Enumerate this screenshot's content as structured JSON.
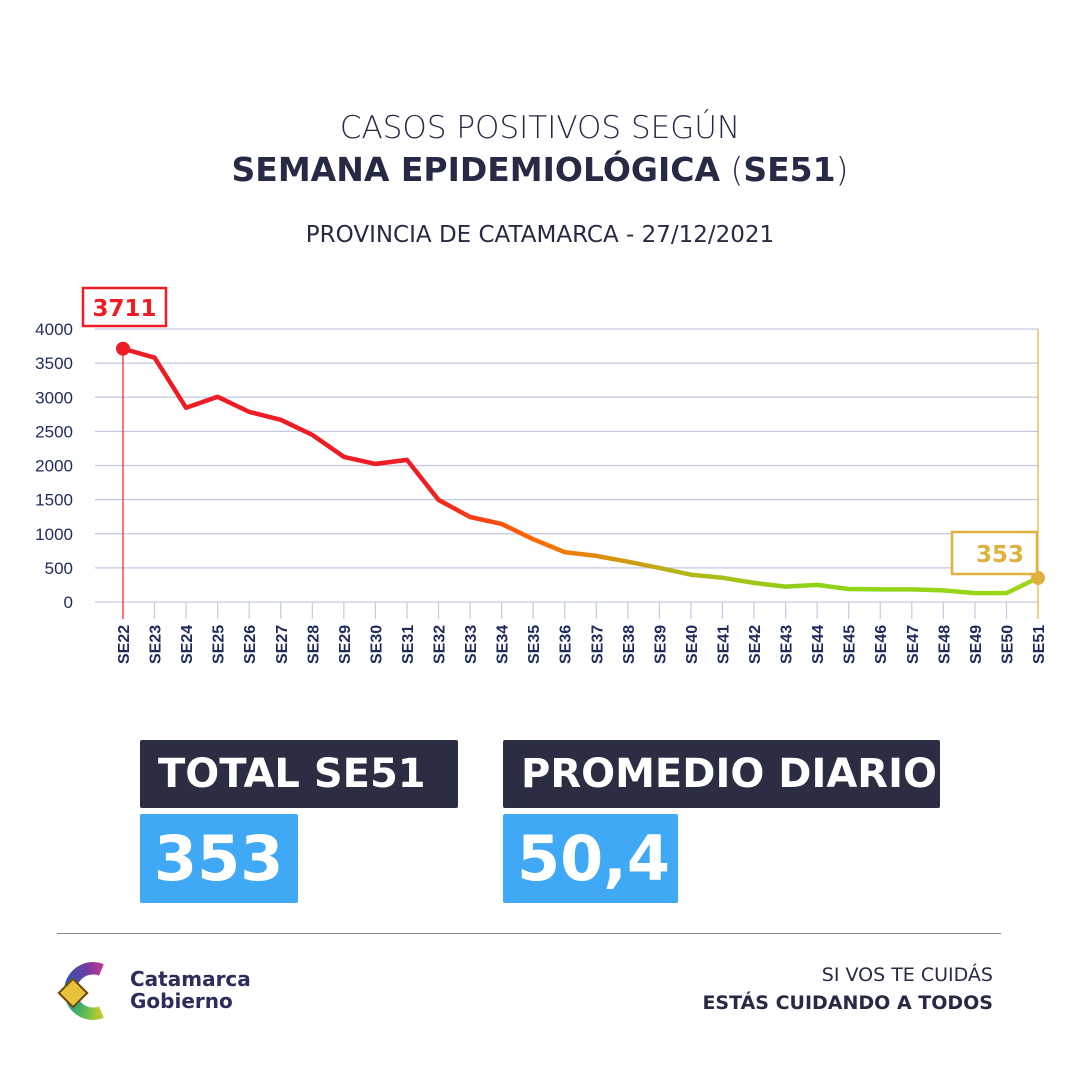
{
  "header": {
    "title_line1": "CASOS POSITIVOS SEGÚN",
    "title_line2_bold": "SEMANA EPIDEMIOLÓGICA",
    "title_line2_paren_open": " (",
    "title_line2_se": "SE51",
    "title_line2_paren_close": ")",
    "subtitle": "PROVINCIA DE CATAMARCA - 27/12/2021"
  },
  "chart_data": {
    "type": "line",
    "title": "",
    "xlabel": "",
    "ylabel": "",
    "ylim": [
      0,
      4000
    ],
    "yticks": [
      "0",
      "500",
      "1000",
      "1500",
      "2000",
      "2500",
      "3000",
      "3500",
      "4000"
    ],
    "grid": true,
    "categories": [
      "SE22",
      "SE23",
      "SE24",
      "SE25",
      "SE26",
      "SE27",
      "SE28",
      "SE29",
      "SE30",
      "SE31",
      "SE32",
      "SE33",
      "SE34",
      "SE35",
      "SE36",
      "SE37",
      "SE38",
      "SE39",
      "SE40",
      "SE41",
      "SE42",
      "SE43",
      "SE44",
      "SE45",
      "SE46",
      "SE47",
      "SE48",
      "SE49",
      "SE50",
      "SE51"
    ],
    "values": [
      3711,
      3580,
      2845,
      3006,
      2786,
      2669,
      2449,
      2126,
      2023,
      2082,
      1496,
      1246,
      1144,
      920,
      730,
      675,
      590,
      500,
      400,
      355,
      280,
      225,
      250,
      190,
      185,
      185,
      170,
      130,
      130,
      353
    ],
    "annotations": [
      {
        "category": "SE22",
        "label": "3711",
        "color": "#ee1c25"
      },
      {
        "category": "SE51",
        "label": "353",
        "color": "#e0b03c"
      }
    ],
    "line_colors": [
      "#ee1c25",
      "#ff6a00",
      "#b8b31a",
      "#8cd317"
    ]
  },
  "stats": {
    "total_label": "TOTAL SE51",
    "total_value": "353",
    "avg_label": "PROMEDIO DIARIO",
    "avg_value": "50,4"
  },
  "footer": {
    "logo_line1": "Catamarca",
    "logo_line2": "Gobierno",
    "slogan1": "SI VOS TE CUIDÁS",
    "slogan2": "ESTÁS CUIDANDO A TODOS"
  },
  "colors": {
    "dark": "#2b2d42",
    "blue": "#3fa9f5",
    "navy": "#1e2a5a"
  }
}
